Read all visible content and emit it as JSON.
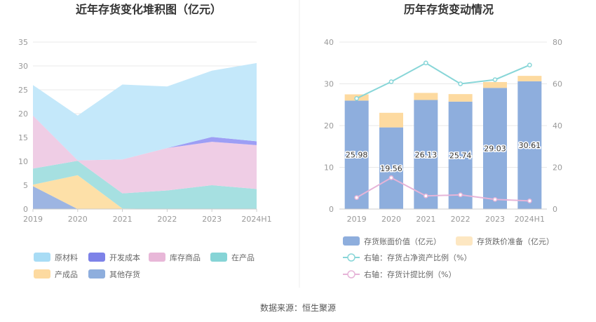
{
  "source": "数据来源：恒生聚源",
  "chart_data": [
    {
      "type": "area",
      "stacked": true,
      "title": "近年存货变化堆积图（亿元）",
      "categories": [
        "2019",
        "2020",
        "2021",
        "2022",
        "2023",
        "2024H1"
      ],
      "ylim": [
        0,
        35
      ],
      "yticks": [
        "0",
        "5",
        "10",
        "15",
        "20",
        "25",
        "30",
        "35"
      ],
      "series": [
        {
          "name": "其他存货",
          "color": "#9db5e2",
          "values": [
            4.8,
            0,
            0,
            0,
            0,
            0
          ]
        },
        {
          "name": "产成品",
          "color": "#fde0a8",
          "values": [
            0.3,
            7.1,
            0.1,
            0,
            0,
            0
          ]
        },
        {
          "name": "在产品",
          "color": "#a6e0e1",
          "values": [
            3.4,
            3.0,
            3.2,
            3.9,
            5.0,
            4.2
          ]
        },
        {
          "name": "库存商品",
          "color": "#efcde5",
          "values": [
            11.1,
            0.1,
            7.1,
            8.9,
            9.1,
            9.2
          ]
        },
        {
          "name": "开发成本",
          "color": "#9d9ef5",
          "values": [
            0,
            0,
            0,
            0,
            1.0,
            0.8
          ]
        },
        {
          "name": "原材料",
          "color": "#c4e8fa",
          "values": [
            6.4,
            9.4,
            15.7,
            12.9,
            13.9,
            16.4
          ]
        }
      ],
      "legend_order": [
        "原材料",
        "开发成本",
        "库存商品",
        "在产品",
        "产成品",
        "其他存货"
      ],
      "legend_colors": [
        "#a8dcf5",
        "#7d82e8",
        "#e8b7d8",
        "#86d4d6",
        "#fddaa0",
        "#8eaedd"
      ]
    },
    {
      "type": "bar",
      "stacked": true,
      "title": "历年存货变动情况",
      "categories": [
        "2019",
        "2020",
        "2021",
        "2022",
        "2023",
        "2024H1"
      ],
      "ylim": [
        0,
        40
      ],
      "yticks": [
        "0",
        "10",
        "20",
        "30",
        "40"
      ],
      "y2lim": [
        0,
        80
      ],
      "y2ticks": [
        "0",
        "20",
        "40",
        "60",
        "80"
      ],
      "series": [
        {
          "name": "存货账面价值（亿元）",
          "color": "#8eaedd",
          "axis": "left",
          "values": [
            25.98,
            19.56,
            26.13,
            25.74,
            29.03,
            30.61
          ],
          "labels": [
            "25.98",
            "19.56",
            "26.13",
            "25.74",
            "29.03",
            "30.61"
          ]
        },
        {
          "name": "存货跌价准备（亿元）",
          "color": "#fddaa0",
          "axis": "left",
          "values": [
            1.5,
            3.5,
            1.7,
            1.8,
            1.4,
            1.3
          ]
        },
        {
          "name": "右轴：存货占净资产比例（%）",
          "type": "line",
          "color": "#88d6d8",
          "axis": "right",
          "values": [
            53,
            61,
            70,
            60,
            62,
            69
          ]
        },
        {
          "name": "右轴：存货计提比例（%）",
          "type": "line",
          "color": "#e6b4d8",
          "axis": "right",
          "values": [
            5.5,
            15,
            6.3,
            6.8,
            4.6,
            3.9
          ]
        }
      ]
    }
  ]
}
